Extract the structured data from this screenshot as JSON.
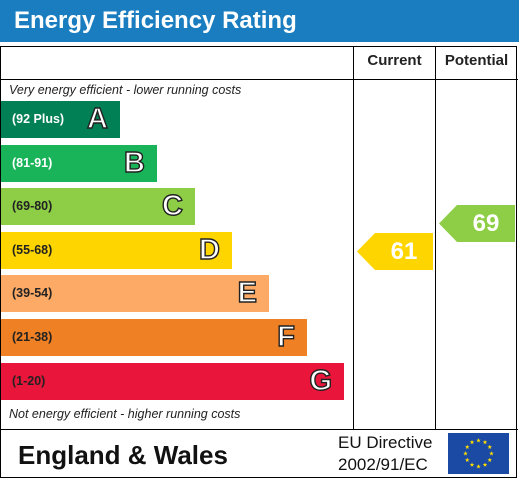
{
  "title": "Energy Efficiency Rating",
  "columns": {
    "current": "Current",
    "potential": "Potential"
  },
  "top_note": "Very energy efficient - lower running costs",
  "bottom_note": "Not energy efficient - higher running costs",
  "footer": {
    "region": "England & Wales",
    "directive_line1": "EU Directive",
    "directive_line2": "2002/91/EC"
  },
  "colors": {
    "title_bar": "#1a7dc0",
    "A": "#008054",
    "B": "#19b459",
    "C": "#8dce46",
    "D": "#ffd500",
    "E": "#fcaa65",
    "F": "#ef8023",
    "G": "#e9153b",
    "eu_flag": "#1b4aa5",
    "eu_stars": "#ffdd00"
  },
  "chart_data": {
    "type": "table",
    "title": "Energy Efficiency Rating",
    "bands": [
      {
        "letter": "A",
        "range": "(92 Plus)"
      },
      {
        "letter": "B",
        "range": "(81-91)"
      },
      {
        "letter": "C",
        "range": "(69-80)"
      },
      {
        "letter": "D",
        "range": "(55-68)"
      },
      {
        "letter": "E",
        "range": "(39-54)"
      },
      {
        "letter": "F",
        "range": "(21-38)"
      },
      {
        "letter": "G",
        "range": "(1-20)"
      }
    ],
    "current": {
      "value": 61,
      "band": "D",
      "label": "61"
    },
    "potential": {
      "value": 69,
      "band": "C",
      "label": "69"
    }
  }
}
